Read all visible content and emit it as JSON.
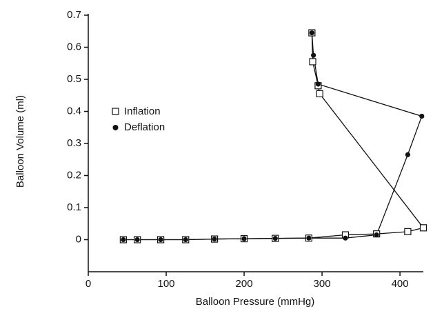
{
  "chart_data": {
    "type": "line",
    "xlabel": "Balloon Pressure (mmHg)",
    "ylabel": "Balloon Volume (ml)",
    "xlim": [
      0,
      430
    ],
    "xticks": [
      0,
      100,
      200,
      300,
      400
    ],
    "ylim": [
      -0.1,
      0.7
    ],
    "yticks": [
      0,
      0.1,
      0.2,
      0.3,
      0.4,
      0.5,
      0.6,
      0.7
    ],
    "series": [
      {
        "name": "Inflation",
        "color": "#111111",
        "marker": "square-open",
        "x": [
          45,
          63,
          93,
          125,
          162,
          200,
          240,
          283,
          330,
          370,
          410,
          430,
          297,
          295,
          288,
          287
        ],
        "values": [
          0,
          0,
          0,
          0,
          0.002,
          0.003,
          0.004,
          0.005,
          0.015,
          0.018,
          0.025,
          0.037,
          0.455,
          0.48,
          0.555,
          0.645
        ]
      },
      {
        "name": "Deflation",
        "color": "#111111",
        "marker": "circle-filled",
        "x": [
          287,
          289,
          295,
          428,
          410,
          370,
          330,
          283,
          240,
          200,
          162,
          125,
          93,
          63,
          45
        ],
        "values": [
          0.645,
          0.575,
          0.485,
          0.385,
          0.265,
          0.015,
          0.005,
          0.005,
          0.004,
          0.003,
          0.002,
          0,
          0,
          0,
          0
        ]
      }
    ]
  }
}
